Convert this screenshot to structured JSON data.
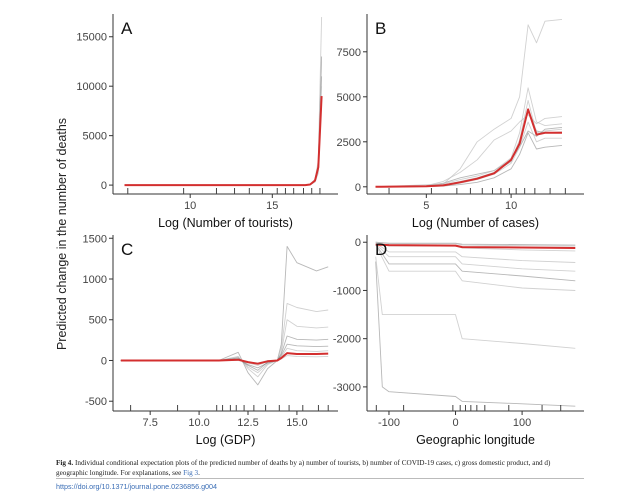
{
  "figure": {
    "shared_ylabel": "Predicted change in the number of deaths",
    "colors": {
      "ice_line": "#bdbdbd",
      "ice_dark": "#333333",
      "mean_line": "#d32f2f",
      "axis": "#333333",
      "rug": "#444444"
    }
  },
  "chart_data": [
    {
      "type": "line",
      "panel_label": "A",
      "xlabel": "Log (Number of tourists)",
      "ylabel": "",
      "xlim": [
        5.3,
        19
      ],
      "ylim": [
        -900,
        17300
      ],
      "xticks": [
        10,
        15
      ],
      "yticks": [
        0,
        5000,
        10000,
        15000
      ],
      "ytick_labels": [
        "0",
        "5000",
        "10000",
        "15000"
      ],
      "xtick_labels": [
        "10",
        "15"
      ],
      "rug": [
        6.2,
        9.6,
        11.6,
        12.7,
        13.6,
        14.4,
        15.3,
        15.8,
        16.3,
        16.9,
        17.4,
        17.9
      ],
      "series": [
        {
          "role": "ice",
          "x": [
            6,
            17,
            17.3,
            17.6,
            17.8,
            18
          ],
          "y": [
            0,
            0,
            50,
            400,
            1500,
            11000
          ]
        },
        {
          "role": "ice",
          "x": [
            6,
            17,
            17.3,
            17.6,
            17.8,
            18
          ],
          "y": [
            0,
            0,
            80,
            600,
            2500,
            17000
          ]
        },
        {
          "role": "ice",
          "x": [
            6,
            17,
            17.3,
            17.6,
            17.8,
            18
          ],
          "y": [
            0,
            0,
            40,
            300,
            1200,
            8500
          ]
        },
        {
          "role": "ice",
          "x": [
            6,
            17,
            17.3,
            17.6,
            17.8,
            18
          ],
          "y": [
            0,
            0,
            60,
            500,
            2000,
            13000
          ]
        },
        {
          "role": "ice",
          "x": [
            6,
            17,
            17.3,
            17.6,
            17.8,
            18
          ],
          "y": [
            0,
            0,
            70,
            550,
            2200,
            12500
          ]
        },
        {
          "role": "ice",
          "x": [
            6,
            17,
            17.3,
            17.6,
            17.8,
            18
          ],
          "y": [
            0,
            0,
            55,
            450,
            1800,
            10000
          ]
        },
        {
          "role": "mean",
          "x": [
            6,
            17,
            17.3,
            17.6,
            17.8,
            18
          ],
          "y": [
            0,
            0,
            60,
            450,
            1800,
            9000
          ]
        }
      ]
    },
    {
      "type": "line",
      "panel_label": "B",
      "xlabel": "Log (Number of cases)",
      "ylabel": "",
      "xlim": [
        1.5,
        14.3
      ],
      "ylim": [
        -400,
        9600
      ],
      "xticks": [
        5,
        10
      ],
      "yticks": [
        0,
        2500,
        5000,
        7500
      ],
      "ytick_labels": [
        "0",
        "2500",
        "5000",
        "7500"
      ],
      "xtick_labels": [
        "5",
        "10"
      ],
      "rug": [
        2.8,
        5.3,
        6.8,
        7.6,
        8.3,
        8.9,
        9.4,
        9.9,
        10.3,
        10.8,
        11.4,
        12.3,
        13.2
      ],
      "series": [
        {
          "role": "ice",
          "x": [
            2,
            5,
            6,
            7,
            8,
            9,
            10,
            10.5,
            11,
            11.5,
            12,
            13
          ],
          "y": [
            0,
            50,
            200,
            500,
            700,
            900,
            1500,
            2200,
            3100,
            2800,
            3200,
            3300
          ]
        },
        {
          "role": "ice",
          "x": [
            2,
            5,
            6,
            7,
            8,
            9,
            10,
            10.5,
            11,
            11.5,
            12,
            13
          ],
          "y": [
            0,
            60,
            300,
            800,
            1500,
            2600,
            3100,
            3600,
            4000,
            3500,
            3800,
            3900
          ]
        },
        {
          "role": "ice",
          "x": [
            2,
            6,
            7,
            8,
            9,
            10,
            10.5,
            11,
            11.5,
            12,
            13
          ],
          "y": [
            0,
            150,
            1000,
            2500,
            3200,
            3800,
            5000,
            9000,
            8000,
            9200,
            9300
          ]
        },
        {
          "role": "ice",
          "x": [
            2,
            5,
            6,
            7,
            8,
            9,
            10,
            10.5,
            11,
            11.5,
            12,
            13
          ],
          "y": [
            0,
            30,
            100,
            300,
            500,
            800,
            1400,
            2500,
            4200,
            3100,
            3000,
            3050
          ]
        },
        {
          "role": "ice",
          "x": [
            2,
            5,
            6,
            7,
            8,
            9,
            10,
            10.5,
            11,
            11.5,
            12,
            13
          ],
          "y": [
            0,
            20,
            60,
            200,
            400,
            700,
            1300,
            2200,
            3600,
            2500,
            2700,
            2700
          ]
        },
        {
          "role": "ice",
          "x": [
            2,
            5,
            6,
            7,
            8,
            9,
            10,
            10.5,
            11,
            11.5,
            12,
            13
          ],
          "y": [
            0,
            40,
            150,
            400,
            600,
            900,
            1600,
            3000,
            5500,
            3600,
            3400,
            3500
          ]
        },
        {
          "role": "ice",
          "x": [
            2,
            5,
            6,
            7,
            8,
            9,
            10,
            10.5,
            11,
            11.5,
            12,
            13
          ],
          "y": [
            0,
            10,
            40,
            120,
            250,
            500,
            1000,
            1800,
            3000,
            2100,
            2200,
            2300
          ]
        },
        {
          "role": "ice",
          "x": [
            2,
            5,
            6,
            7,
            8,
            9,
            10,
            10.5,
            11,
            11.5,
            12,
            13
          ],
          "y": [
            0,
            25,
            80,
            250,
            450,
            750,
            1500,
            2600,
            4800,
            3000,
            3100,
            3200
          ]
        },
        {
          "role": "mean",
          "x": [
            2,
            5,
            6,
            7,
            8,
            9,
            10,
            10.5,
            11,
            11.5,
            12,
            13
          ],
          "y": [
            0,
            30,
            80,
            250,
            450,
            750,
            1500,
            2400,
            4300,
            2900,
            3000,
            3000
          ]
        }
      ]
    },
    {
      "type": "line",
      "panel_label": "C",
      "xlabel": "Log (GDP)",
      "ylabel": "",
      "xlim": [
        5.6,
        17.1
      ],
      "ylim": [
        -620,
        1540
      ],
      "xticks": [
        7.5,
        10,
        12.5,
        15
      ],
      "yticks": [
        -500,
        0,
        500,
        1000,
        1500
      ],
      "ytick_labels": [
        "-500",
        "0",
        "500",
        "1000",
        "1500"
      ],
      "xtick_labels": [
        "7.5",
        "10.0",
        "12.5",
        "15.0"
      ],
      "rug": [
        6.5,
        8.9,
        10.9,
        11.2,
        11.6,
        11.9,
        12.3,
        12.8,
        13.4,
        14.1,
        14.6,
        15.3,
        16.1,
        16.6
      ],
      "series": [
        {
          "role": "ice",
          "x": [
            6,
            11,
            12,
            12.5,
            13,
            13.5,
            14,
            14.2,
            14.5,
            15,
            16,
            16.6
          ],
          "y": [
            0,
            0,
            100,
            -150,
            -300,
            -100,
            0,
            200,
            1400,
            1200,
            1100,
            1150
          ]
        },
        {
          "role": "ice",
          "x": [
            6,
            11,
            12,
            12.5,
            13,
            13.5,
            14,
            14.2,
            14.5,
            15,
            16,
            16.6
          ],
          "y": [
            0,
            0,
            50,
            -100,
            -200,
            -50,
            0,
            150,
            700,
            650,
            600,
            620
          ]
        },
        {
          "role": "ice",
          "x": [
            6,
            11,
            12,
            12.5,
            13,
            13.5,
            14,
            14.2,
            14.5,
            15,
            16,
            16.6
          ],
          "y": [
            0,
            0,
            40,
            -80,
            -150,
            -40,
            0,
            100,
            500,
            420,
            400,
            410
          ]
        },
        {
          "role": "ice",
          "x": [
            6,
            11,
            12,
            12.5,
            13,
            13.5,
            14,
            14.2,
            14.5,
            15,
            16,
            16.6
          ],
          "y": [
            0,
            0,
            20,
            -60,
            -120,
            -20,
            0,
            80,
            300,
            260,
            250,
            260
          ]
        },
        {
          "role": "ice",
          "x": [
            6,
            11,
            12,
            12.5,
            13,
            13.5,
            14,
            14.2,
            14.5,
            15,
            16,
            16.6
          ],
          "y": [
            0,
            0,
            10,
            -30,
            -60,
            -10,
            0,
            40,
            150,
            120,
            110,
            120
          ]
        },
        {
          "role": "ice",
          "x": [
            6,
            11,
            12,
            12.5,
            13,
            13.5,
            14,
            14.2,
            14.5,
            15,
            16,
            16.6
          ],
          "y": [
            0,
            0,
            0,
            -20,
            -30,
            0,
            0,
            20,
            60,
            50,
            45,
            50
          ]
        },
        {
          "role": "ice",
          "x": [
            6,
            11,
            12,
            12.5,
            13,
            13.5,
            14,
            14.2,
            14.5,
            15,
            16,
            16.6
          ],
          "y": [
            0,
            0,
            30,
            -50,
            -90,
            -30,
            0,
            60,
            200,
            180,
            170,
            175
          ]
        },
        {
          "role": "mean",
          "x": [
            6,
            11,
            12,
            12.5,
            13,
            13.5,
            14,
            14.2,
            14.5,
            15,
            16,
            16.6
          ],
          "y": [
            0,
            0,
            10,
            -20,
            -40,
            -10,
            0,
            30,
            90,
            80,
            80,
            85
          ]
        }
      ]
    },
    {
      "type": "line",
      "panel_label": "D",
      "xlabel": "Geographic longitude",
      "ylabel": "",
      "xlim": [
        -133,
        193
      ],
      "ylim": [
        -3500,
        150
      ],
      "xticks": [
        -100,
        0,
        100
      ],
      "yticks": [
        -3000,
        -2000,
        -1000,
        0
      ],
      "ytick_labels": [
        "-3000",
        "-2000",
        "-1000",
        "0"
      ],
      "xtick_labels": [
        "-100",
        "0",
        "100"
      ],
      "rug": [
        -119,
        -78,
        -4,
        7,
        15,
        23,
        32,
        44,
        80,
        130,
        158
      ],
      "series": [
        {
          "role": "ice",
          "x": [
            -120,
            -110,
            -100,
            0,
            10,
            100,
            180
          ],
          "y": [
            -400,
            -3000,
            -3100,
            -3200,
            -3300,
            -3350,
            -3400
          ]
        },
        {
          "role": "ice",
          "x": [
            -120,
            -110,
            -100,
            0,
            10,
            100,
            180
          ],
          "y": [
            -300,
            -1500,
            -1500,
            -1500,
            -2000,
            -2100,
            -2200
          ]
        },
        {
          "role": "ice",
          "x": [
            -120,
            -100,
            0,
            10,
            100,
            180
          ],
          "y": [
            -50,
            -600,
            -600,
            -800,
            -950,
            -1000
          ]
        },
        {
          "role": "ice",
          "x": [
            -120,
            -100,
            0,
            10,
            100,
            180
          ],
          "y": [
            -40,
            -450,
            -450,
            -600,
            -700,
            -800
          ]
        },
        {
          "role": "ice",
          "x": [
            -120,
            -100,
            0,
            10,
            100,
            180
          ],
          "y": [
            -30,
            -300,
            -300,
            -450,
            -550,
            -600
          ]
        },
        {
          "role": "ice",
          "x": [
            -120,
            -100,
            0,
            10,
            100,
            180
          ],
          "y": [
            -20,
            -200,
            -200,
            -300,
            -380,
            -420
          ]
        },
        {
          "role": "ice",
          "x": [
            -120,
            -100,
            0,
            10,
            100,
            180
          ],
          "y": [
            0,
            -20,
            -20,
            -40,
            -50,
            -60
          ]
        },
        {
          "role": "ice",
          "x": [
            -120,
            -100,
            0,
            10,
            100,
            180
          ],
          "y": [
            0,
            -80,
            -80,
            -120,
            -160,
            -180
          ]
        },
        {
          "role": "ice",
          "x": [
            -120,
            -100,
            0,
            10,
            100,
            180
          ],
          "y": [
            0,
            -30,
            -30,
            -60,
            -70,
            -80
          ]
        },
        {
          "role": "mean",
          "x": [
            -120,
            -100,
            0,
            10,
            100,
            180
          ],
          "y": [
            -50,
            -60,
            -70,
            -100,
            -110,
            -120
          ]
        }
      ]
    }
  ],
  "caption": {
    "label": "Fig 4.",
    "text": "Individual conditional expectation plots of the predicted number of deaths by a) number of tourists, b) number of COVID-19 cases, c) gross domestic product, and d) geographic longitude. For explanations, see ",
    "link": "Fig 3",
    "end": "."
  },
  "doi": "https://doi.org/10.1371/journal.pone.0236856.g004"
}
